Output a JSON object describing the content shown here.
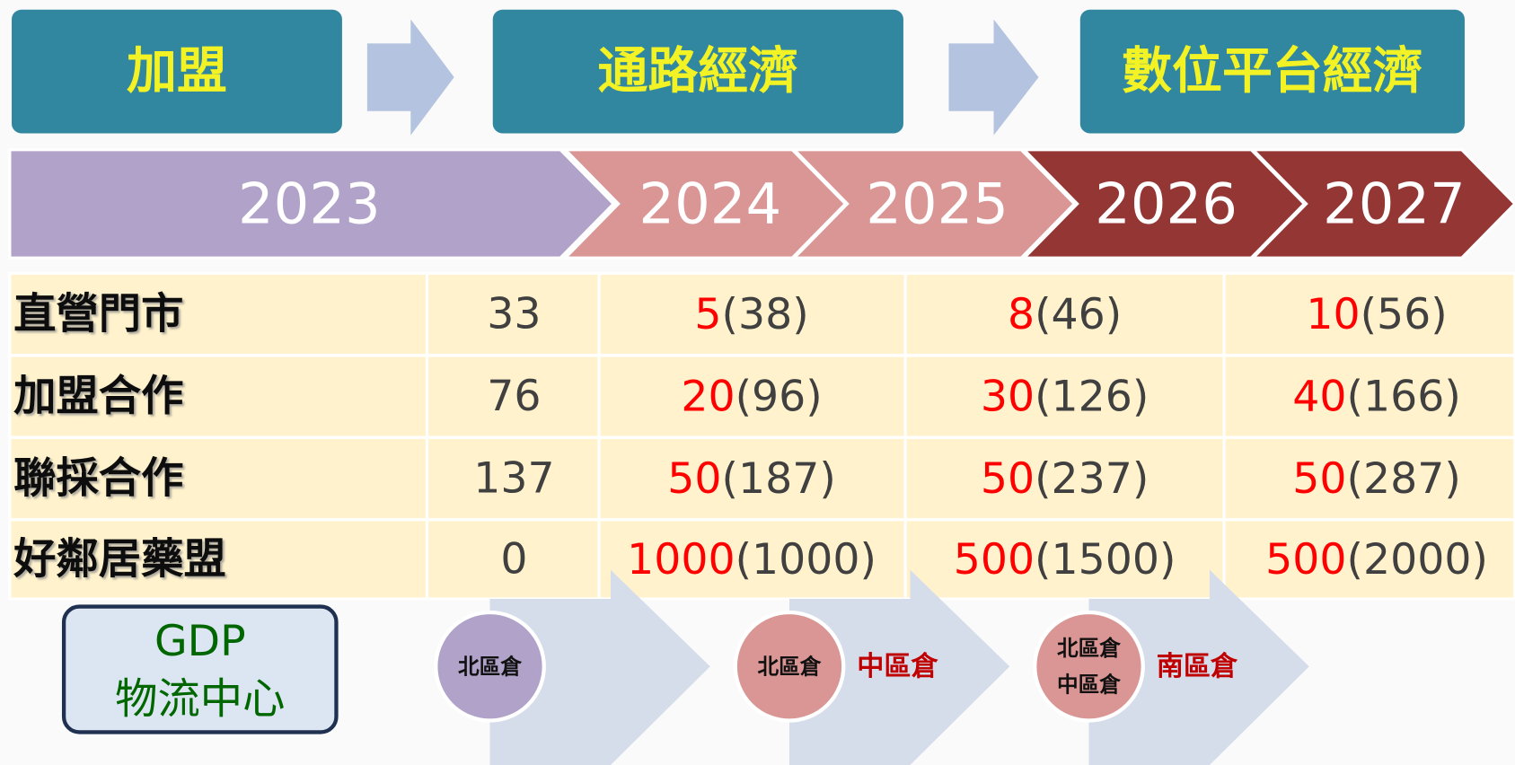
{
  "phases": [
    "加盟",
    "通路經濟",
    "數位平台經濟"
  ],
  "years": [
    "2023",
    "2024",
    "2025",
    "2026",
    "2027"
  ],
  "table": {
    "rows": [
      {
        "label": "直營門市",
        "base": "33",
        "cells": [
          {
            "added": "5",
            "total": "(38)"
          },
          {
            "added": "8",
            "total": "(46)"
          },
          {
            "added": "10",
            "total": "(56)"
          }
        ]
      },
      {
        "label": "加盟合作",
        "base": "76",
        "cells": [
          {
            "added": "20",
            "total": "(96)"
          },
          {
            "added": "30",
            "total": "(126)"
          },
          {
            "added": "40",
            "total": "(166)"
          }
        ]
      },
      {
        "label": "聯採合作",
        "base": "137",
        "cells": [
          {
            "added": "50",
            "total": "(187)"
          },
          {
            "added": "50",
            "total": "(237)"
          },
          {
            "added": "50",
            "total": "(287)"
          }
        ]
      },
      {
        "label": "好鄰居藥盟",
        "base": "0",
        "cells": [
          {
            "added": "1000",
            "total": "(1000)"
          },
          {
            "added": "500",
            "total": "(1500)"
          },
          {
            "added": "500",
            "total": "(2000)"
          }
        ]
      }
    ]
  },
  "logistics": {
    "title": [
      "GDP",
      "物流中心"
    ],
    "stages": [
      {
        "warehouses": [
          "北區倉"
        ]
      },
      {
        "warehouses": [
          "北區倉"
        ],
        "new": "中區倉"
      },
      {
        "warehouses": [
          "北區倉",
          "中區倉"
        ],
        "new": "南區倉"
      }
    ]
  }
}
